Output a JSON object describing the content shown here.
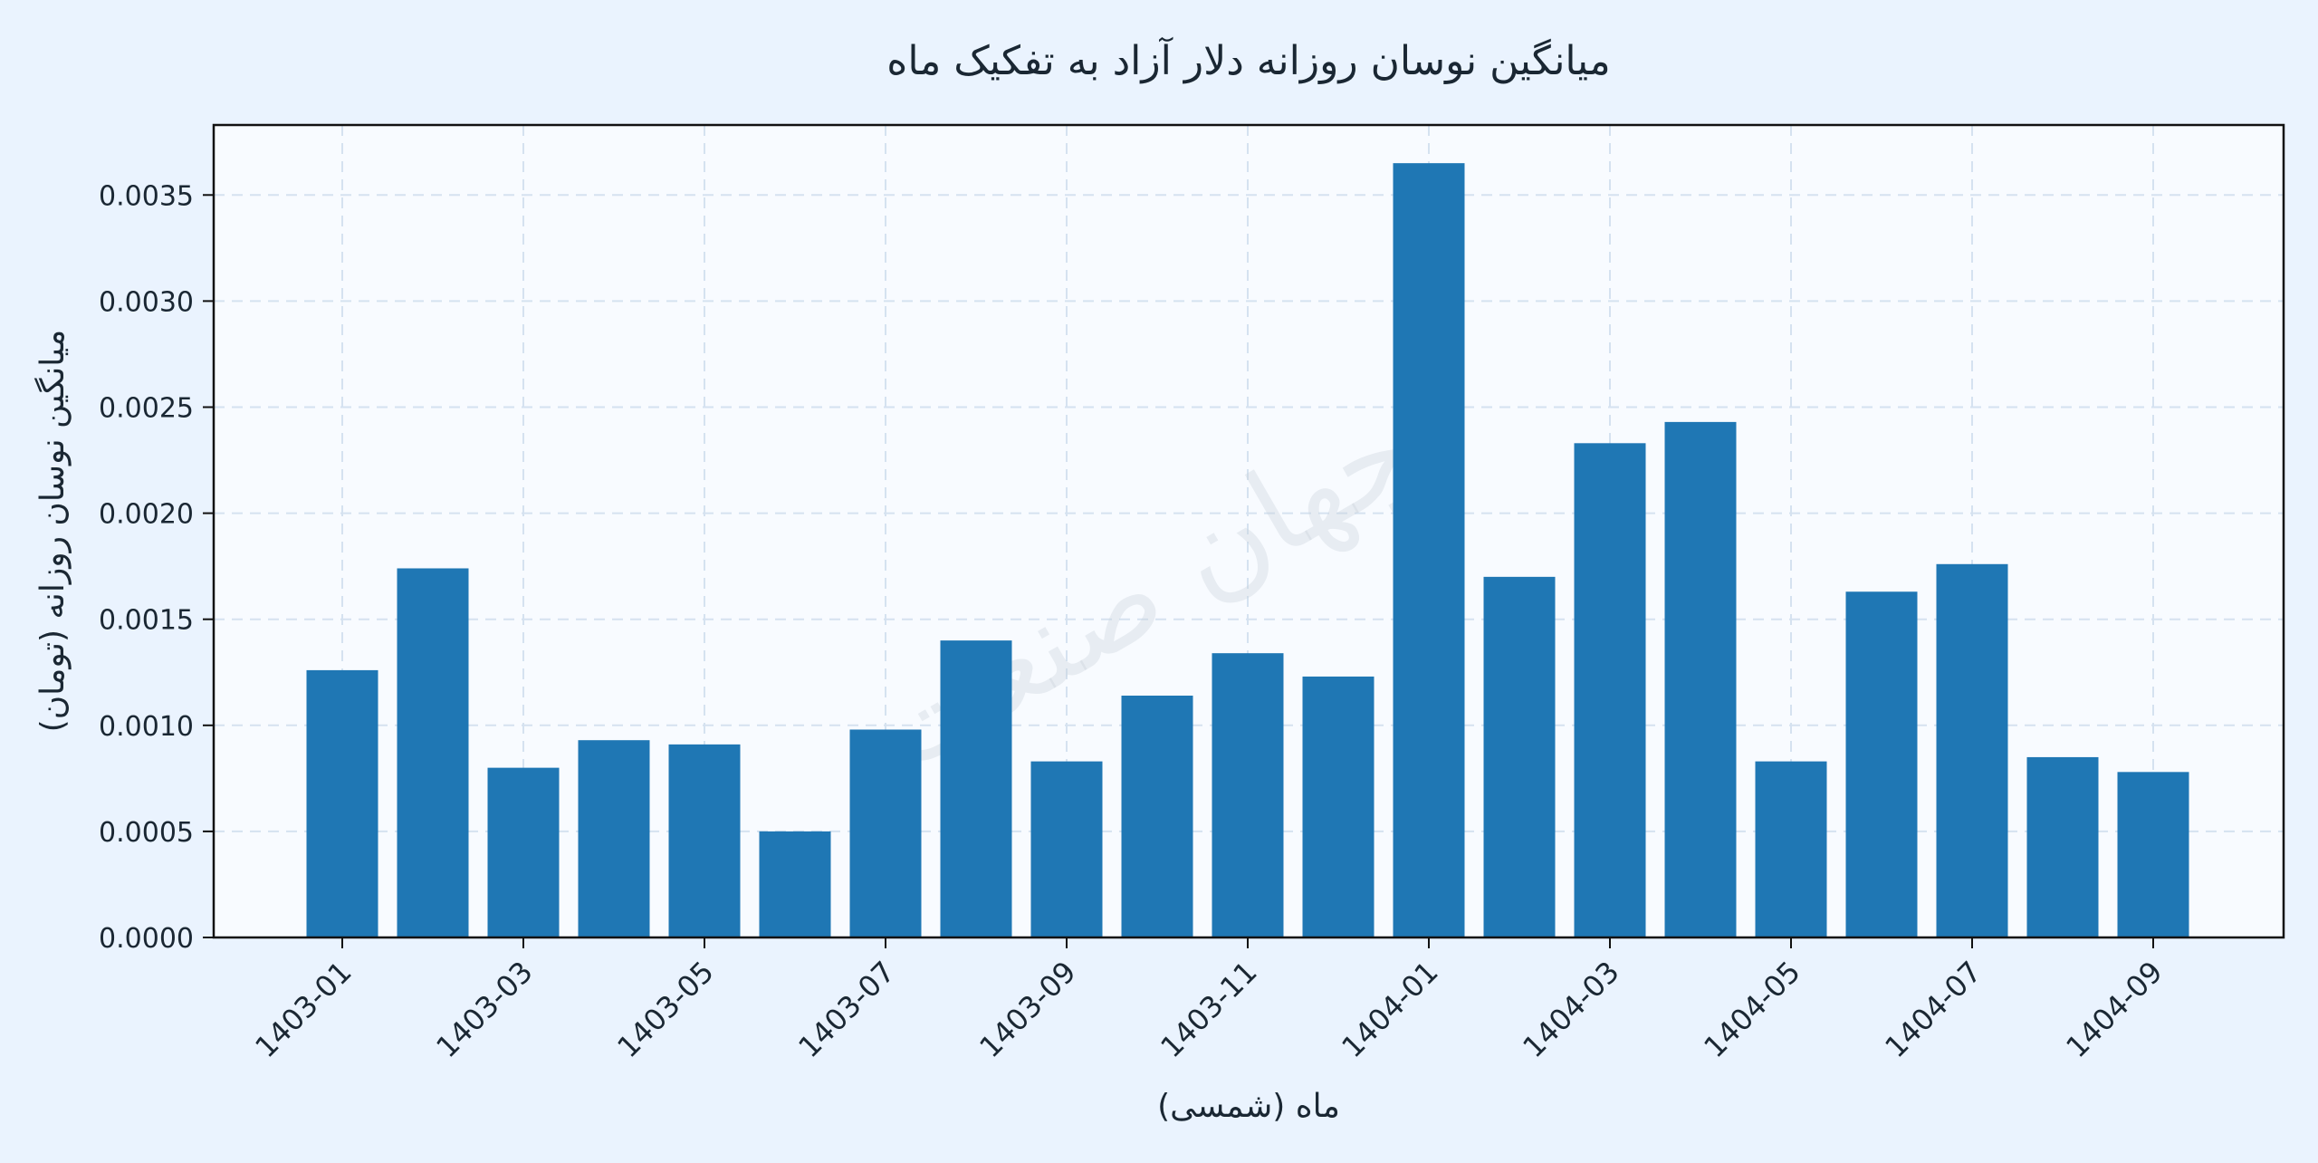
{
  "chart_data": {
    "type": "bar",
    "title": "میانگین نوسان روزانه دلار آزاد به تفکیک ماه",
    "xlabel": "ماه (شمسی)",
    "ylabel": "میانگین نوسان روزانه (تومان)",
    "watermark": "جهان صنعت",
    "categories": [
      "1403-01",
      "1403-02",
      "1403-03",
      "1403-04",
      "1403-05",
      "1403-06",
      "1403-07",
      "1403-08",
      "1403-09",
      "1403-10",
      "1403-11",
      "1403-12",
      "1404-01",
      "1404-02",
      "1404-03",
      "1404-04",
      "1404-05",
      "1404-06",
      "1404-07",
      "1404-08",
      "1404-09"
    ],
    "values": [
      0.00126,
      0.00174,
      0.0008,
      0.00093,
      0.00091,
      0.0005,
      0.00098,
      0.0014,
      0.00083,
      0.00114,
      0.00134,
      0.00123,
      0.00365,
      0.0017,
      0.00233,
      0.00243,
      0.00083,
      0.00163,
      0.00176,
      0.00085,
      0.00078
    ],
    "x_tick_labels": [
      "1403-01",
      "1403-03",
      "1403-05",
      "1403-07",
      "1403-09",
      "1403-11",
      "1404-01",
      "1404-03",
      "1404-05",
      "1404-07",
      "1404-09"
    ],
    "y_ticks": [
      0,
      0.0005,
      0.001,
      0.0015,
      0.002,
      0.0025,
      0.003,
      0.0035
    ],
    "y_tick_labels": [
      "0.0000",
      "0.0005",
      "0.0010",
      "0.0015",
      "0.0020",
      "0.0025",
      "0.0030",
      "0.0035"
    ],
    "ylim": [
      0,
      0.00383
    ],
    "grid": true,
    "colors": {
      "bar": "#1f77b4",
      "background": "#eaf3fe",
      "plot_bg": "#f8fbff",
      "grid": "#d5e2f0",
      "text": "#1a2733"
    }
  }
}
